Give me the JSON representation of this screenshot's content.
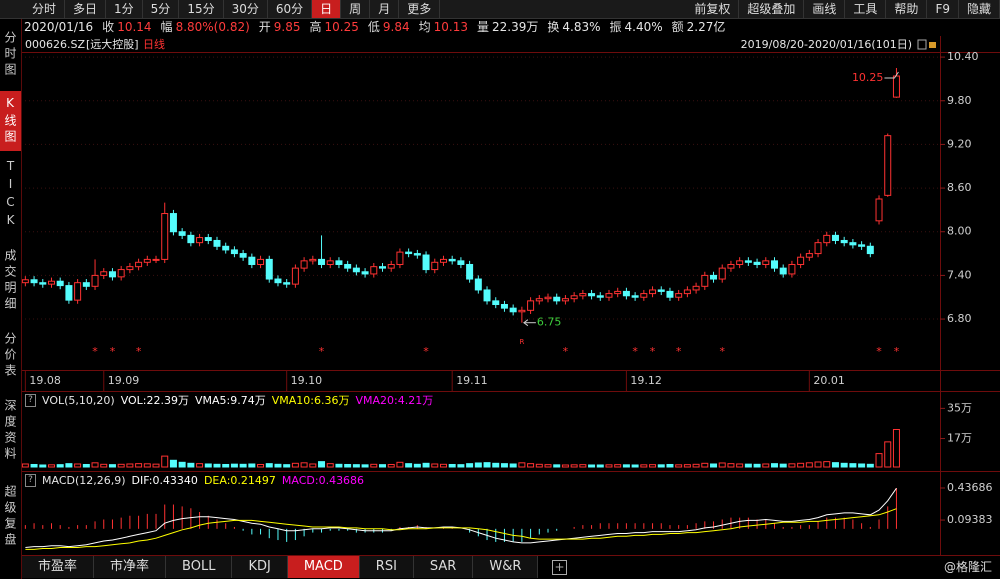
{
  "toolbar": {
    "tabs": [
      "分时",
      "多日",
      "1分",
      "5分",
      "15分",
      "30分",
      "60分",
      "日",
      "周",
      "月",
      "更多"
    ],
    "active_tab": 7,
    "buttons": [
      "前复权",
      "超级叠加",
      "画线",
      "工具",
      "帮助",
      "F9",
      "隐藏"
    ]
  },
  "quote": {
    "date": "2020/01/16",
    "items": [
      {
        "label": "收",
        "value": "10.14",
        "color": "#ff3c3c"
      },
      {
        "label": "幅",
        "value": "8.80%(0.82)",
        "color": "#ff3c3c"
      },
      {
        "label": "开",
        "value": "9.85",
        "color": "#ff3c3c"
      },
      {
        "label": "高",
        "value": "10.25",
        "color": "#ff3c3c"
      },
      {
        "label": "低",
        "value": "9.84",
        "color": "#ff3c3c"
      },
      {
        "label": "均",
        "value": "10.13",
        "color": "#ff3c3c"
      },
      {
        "label": "量",
        "value": "22.39万",
        "color": "#e6e6e6"
      },
      {
        "label": "换",
        "value": "4.83%",
        "color": "#e6e6e6"
      },
      {
        "label": "振",
        "value": "4.40%",
        "color": "#e6e6e6"
      },
      {
        "label": "额",
        "value": "2.27亿",
        "color": "#e6e6e6"
      }
    ]
  },
  "sidebar": {
    "items": [
      "分时图",
      "K线图",
      "TICK",
      "成交明细",
      "分价表",
      "深度资料",
      "超级复盘"
    ],
    "active": 1
  },
  "chart_data": [
    {
      "type": "candlestick",
      "symbol": "000626.SZ",
      "name": "[远大控股]",
      "period": "日线",
      "range": "2019/08/20-2020/01/16(101日)",
      "up_color": "#ff3232",
      "down_color": "#54fcfc",
      "open": [
        7.3,
        7.34,
        7.3,
        7.28,
        7.32,
        7.26,
        7.06,
        7.3,
        7.25,
        7.4,
        7.45,
        7.38,
        7.48,
        7.52,
        7.58,
        7.62,
        7.62,
        8.25,
        8.0,
        7.95,
        7.85,
        7.92,
        7.88,
        7.8,
        7.75,
        7.7,
        7.65,
        7.55,
        7.62,
        7.35,
        7.3,
        7.28,
        7.5,
        7.6,
        7.62,
        7.55,
        7.6,
        7.55,
        7.5,
        7.45,
        7.42,
        7.52,
        7.5,
        7.55,
        7.72,
        7.7,
        7.68,
        7.48,
        7.58,
        7.62,
        7.6,
        7.55,
        7.35,
        7.2,
        7.05,
        7.0,
        6.95,
        6.9,
        6.92,
        7.05,
        7.08,
        7.1,
        7.05,
        7.08,
        7.12,
        7.15,
        7.12,
        7.1,
        7.15,
        7.18,
        7.12,
        7.1,
        7.15,
        7.2,
        7.18,
        7.1,
        7.15,
        7.2,
        7.25,
        7.4,
        7.35,
        7.5,
        7.55,
        7.6,
        7.58,
        7.55,
        7.6,
        7.5,
        7.42,
        7.55,
        7.65,
        7.7,
        7.85,
        7.95,
        7.88,
        7.85,
        7.82,
        7.8,
        8.15,
        8.5,
        9.85
      ],
      "high": [
        7.39,
        7.39,
        7.35,
        7.37,
        7.37,
        7.31,
        7.35,
        7.35,
        7.62,
        7.5,
        7.5,
        7.53,
        7.57,
        7.63,
        7.67,
        7.67,
        8.4,
        8.3,
        8.05,
        8.0,
        7.97,
        7.97,
        7.93,
        7.85,
        7.8,
        7.75,
        7.7,
        7.67,
        7.67,
        7.4,
        7.35,
        7.55,
        7.65,
        7.67,
        7.95,
        7.65,
        7.65,
        7.6,
        7.55,
        7.5,
        7.57,
        7.57,
        7.6,
        7.77,
        7.77,
        7.75,
        7.73,
        7.63,
        7.67,
        7.67,
        7.65,
        7.6,
        7.4,
        7.25,
        7.1,
        7.05,
        7.0,
        6.97,
        7.1,
        7.13,
        7.15,
        7.15,
        7.13,
        7.17,
        7.2,
        7.2,
        7.17,
        7.2,
        7.23,
        7.23,
        7.17,
        7.2,
        7.25,
        7.25,
        7.23,
        7.2,
        7.25,
        7.3,
        7.45,
        7.45,
        7.55,
        7.6,
        7.65,
        7.65,
        7.63,
        7.65,
        7.65,
        7.55,
        7.6,
        7.7,
        7.75,
        7.9,
        8.0,
        8.0,
        7.93,
        7.9,
        7.87,
        7.85,
        8.5,
        9.35,
        10.25
      ],
      "low": [
        7.25,
        7.25,
        7.23,
        7.23,
        7.21,
        7.01,
        7.01,
        7.2,
        7.2,
        7.35,
        7.33,
        7.33,
        7.43,
        7.47,
        7.53,
        7.57,
        7.57,
        7.95,
        7.9,
        7.8,
        7.8,
        7.83,
        7.75,
        7.7,
        7.65,
        7.6,
        7.5,
        7.5,
        7.3,
        7.25,
        7.23,
        7.23,
        7.45,
        7.55,
        7.5,
        7.5,
        7.5,
        7.45,
        7.4,
        7.37,
        7.37,
        7.45,
        7.45,
        7.5,
        7.65,
        7.63,
        7.43,
        7.43,
        7.53,
        7.55,
        7.5,
        7.3,
        7.15,
        7.0,
        6.95,
        6.9,
        6.85,
        6.75,
        6.87,
        7.0,
        7.03,
        7.0,
        7.0,
        7.03,
        7.07,
        7.07,
        7.05,
        7.05,
        7.1,
        7.07,
        7.05,
        7.05,
        7.1,
        7.13,
        7.05,
        7.05,
        7.1,
        7.15,
        7.2,
        7.3,
        7.3,
        7.45,
        7.5,
        7.53,
        7.5,
        7.5,
        7.45,
        7.37,
        7.37,
        7.5,
        7.6,
        7.65,
        7.8,
        7.83,
        7.8,
        7.77,
        7.75,
        7.65,
        8.1,
        8.48,
        9.84
      ],
      "close": [
        7.34,
        7.3,
        7.28,
        7.32,
        7.26,
        7.06,
        7.3,
        7.25,
        7.4,
        7.45,
        7.38,
        7.48,
        7.52,
        7.58,
        7.62,
        7.62,
        8.25,
        8.0,
        7.95,
        7.85,
        7.92,
        7.88,
        7.8,
        7.75,
        7.7,
        7.65,
        7.55,
        7.62,
        7.35,
        7.3,
        7.28,
        7.5,
        7.6,
        7.62,
        7.55,
        7.6,
        7.55,
        7.5,
        7.45,
        7.42,
        7.52,
        7.5,
        7.55,
        7.72,
        7.7,
        7.68,
        7.48,
        7.58,
        7.62,
        7.6,
        7.55,
        7.35,
        7.2,
        7.05,
        7.0,
        6.95,
        6.9,
        6.92,
        7.05,
        7.08,
        7.1,
        7.05,
        7.08,
        7.12,
        7.15,
        7.12,
        7.1,
        7.15,
        7.18,
        7.12,
        7.1,
        7.15,
        7.2,
        7.18,
        7.1,
        7.15,
        7.2,
        7.25,
        7.4,
        7.35,
        7.5,
        7.55,
        7.6,
        7.58,
        7.55,
        7.6,
        7.5,
        7.42,
        7.55,
        7.65,
        7.7,
        7.85,
        7.95,
        7.88,
        7.85,
        7.82,
        7.8,
        7.7,
        8.45,
        9.32,
        10.14
      ],
      "xlim": [
        -0.5,
        105
      ],
      "xticks": [
        {
          "value": 0,
          "label": "19.08"
        },
        {
          "value": 9,
          "label": "19.09"
        },
        {
          "value": 30,
          "label": "19.10"
        },
        {
          "value": 49,
          "label": "19.11"
        },
        {
          "value": 69,
          "label": "19.12"
        },
        {
          "value": 90,
          "label": "20.01"
        }
      ],
      "ylim": [
        6.1,
        10.47
      ],
      "yticks": [
        {
          "value": 10.4,
          "label": "10.40"
        },
        {
          "value": 9.8,
          "label": "9.80"
        },
        {
          "value": 9.2,
          "label": "9.20"
        },
        {
          "value": 8.6,
          "label": "8.60"
        },
        {
          "value": 8.0,
          "label": "8.00"
        },
        {
          "value": 7.4,
          "label": "7.40"
        },
        {
          "value": 6.8,
          "label": "6.80"
        }
      ],
      "grid": true,
      "annotations": [
        {
          "text": "10.25",
          "index": 100,
          "color": "#ff3232"
        },
        {
          "text": "6.75",
          "index": 57,
          "color": "#3ccc3c"
        }
      ],
      "markers": {
        "label": "*",
        "indices": [
          8,
          10,
          13,
          34,
          46,
          62,
          70,
          72,
          75,
          80,
          98,
          100
        ],
        "color": "#ff3232"
      },
      "r_marker": {
        "label": "R",
        "index": 57
      }
    },
    {
      "type": "bar",
      "title": "VOL(5,10,20)",
      "legend": [
        {
          "text": "VOL:22.39万",
          "color": "#ffffff"
        },
        {
          "text": "VMA5:9.74万",
          "color": "#ffffff"
        },
        {
          "text": "VMA10:6.36万",
          "color": "#ffff00"
        },
        {
          "text": "VMA20:4.21万",
          "color": "#ff00ff"
        }
      ],
      "values": [
        1.8,
        1.5,
        1.2,
        1.3,
        1.4,
        2.0,
        1.8,
        1.5,
        2.5,
        1.6,
        1.4,
        1.6,
        1.8,
        2.0,
        1.9,
        1.7,
        6.5,
        4.0,
        2.8,
        2.2,
        2.0,
        1.8,
        1.6,
        1.5,
        1.7,
        1.6,
        1.8,
        1.5,
        2.0,
        1.6,
        1.4,
        2.2,
        2.5,
        1.8,
        3.2,
        2.0,
        1.6,
        1.5,
        1.4,
        1.3,
        1.6,
        1.4,
        1.5,
        2.8,
        2.0,
        1.6,
        2.2,
        1.8,
        1.6,
        1.5,
        1.4,
        2.0,
        2.4,
        2.6,
        2.2,
        2.0,
        1.8,
        2.5,
        2.0,
        1.6,
        1.4,
        1.3,
        1.2,
        1.3,
        1.4,
        1.2,
        1.2,
        1.3,
        1.4,
        1.3,
        1.2,
        1.3,
        1.4,
        1.3,
        1.5,
        1.3,
        1.4,
        1.6,
        2.2,
        1.8,
        2.4,
        2.0,
        1.8,
        1.7,
        1.6,
        1.8,
        2.0,
        1.7,
        1.9,
        2.2,
        2.5,
        3.0,
        3.2,
        2.6,
        2.2,
        2.0,
        1.8,
        1.6,
        8.0,
        15.0,
        22.39
      ],
      "ylim": [
        0,
        40
      ],
      "yticks": [
        {
          "value": 35,
          "label": "35万"
        },
        {
          "value": 17,
          "label": "17万"
        }
      ]
    },
    {
      "type": "macd",
      "title": "MACD(12,26,9)",
      "up_color": "#ff3232",
      "down_color": "#54fcfc",
      "series": [
        {
          "label": "DIF:0.43340",
          "color": "#ffffff",
          "values": [
            -0.2,
            -0.19,
            -0.19,
            -0.18,
            -0.18,
            -0.19,
            -0.18,
            -0.17,
            -0.15,
            -0.13,
            -0.12,
            -0.1,
            -0.08,
            -0.06,
            -0.04,
            -0.02,
            0.06,
            0.09,
            0.11,
            0.12,
            0.13,
            0.13,
            0.12,
            0.11,
            0.1,
            0.08,
            0.06,
            0.05,
            0.02,
            0.0,
            -0.02,
            -0.02,
            -0.01,
            0.0,
            0.0,
            0.01,
            0.01,
            0.0,
            -0.01,
            -0.02,
            -0.02,
            -0.02,
            -0.02,
            0.0,
            0.01,
            0.02,
            0.01,
            0.01,
            0.02,
            0.02,
            0.01,
            -0.01,
            -0.04,
            -0.07,
            -0.1,
            -0.12,
            -0.14,
            -0.15,
            -0.15,
            -0.14,
            -0.13,
            -0.12,
            -0.11,
            -0.1,
            -0.09,
            -0.08,
            -0.07,
            -0.06,
            -0.05,
            -0.05,
            -0.04,
            -0.04,
            -0.03,
            -0.03,
            -0.03,
            -0.03,
            -0.02,
            -0.01,
            0.01,
            0.02,
            0.04,
            0.06,
            0.08,
            0.09,
            0.09,
            0.1,
            0.09,
            0.08,
            0.08,
            0.09,
            0.1,
            0.12,
            0.15,
            0.16,
            0.17,
            0.17,
            0.16,
            0.15,
            0.2,
            0.3,
            0.4334
          ]
        },
        {
          "label": "DEA:0.21497",
          "color": "#ffff00",
          "values": [
            -0.22,
            -0.22,
            -0.21,
            -0.21,
            -0.2,
            -0.2,
            -0.2,
            -0.19,
            -0.19,
            -0.18,
            -0.17,
            -0.16,
            -0.15,
            -0.13,
            -0.12,
            -0.1,
            -0.07,
            -0.04,
            -0.01,
            0.01,
            0.04,
            0.06,
            0.07,
            0.08,
            0.09,
            0.09,
            0.09,
            0.08,
            0.07,
            0.06,
            0.05,
            0.04,
            0.03,
            0.02,
            0.02,
            0.02,
            0.02,
            0.01,
            0.01,
            0.0,
            0.0,
            0.0,
            -0.01,
            -0.01,
            0.0,
            0.0,
            0.0,
            0.01,
            0.01,
            0.01,
            0.01,
            0.01,
            0.0,
            -0.01,
            -0.03,
            -0.05,
            -0.07,
            -0.08,
            -0.1,
            -0.11,
            -0.11,
            -0.11,
            -0.11,
            -0.11,
            -0.11,
            -0.1,
            -0.1,
            -0.09,
            -0.08,
            -0.08,
            -0.07,
            -0.07,
            -0.06,
            -0.06,
            -0.05,
            -0.05,
            -0.04,
            -0.04,
            -0.03,
            -0.02,
            -0.01,
            0.0,
            0.02,
            0.03,
            0.04,
            0.05,
            0.06,
            0.07,
            0.07,
            0.07,
            0.08,
            0.08,
            0.09,
            0.1,
            0.11,
            0.12,
            0.13,
            0.14,
            0.15,
            0.18,
            0.21497
          ]
        },
        {
          "label": "MACD:0.43686",
          "color": "#ff00ff",
          "values": [
            0.04,
            0.06,
            0.04,
            0.06,
            0.04,
            0.02,
            0.04,
            0.04,
            0.08,
            0.1,
            0.1,
            0.12,
            0.14,
            0.14,
            0.16,
            0.16,
            0.26,
            0.26,
            0.24,
            0.22,
            0.18,
            0.14,
            0.1,
            0.06,
            0.02,
            -0.02,
            -0.06,
            -0.06,
            -0.1,
            -0.12,
            -0.14,
            -0.12,
            -0.08,
            -0.04,
            -0.04,
            -0.02,
            -0.02,
            -0.02,
            -0.04,
            -0.04,
            -0.04,
            -0.04,
            -0.02,
            0.02,
            0.02,
            0.04,
            0.02,
            0.0,
            0.02,
            0.02,
            0.0,
            -0.04,
            -0.08,
            -0.12,
            -0.14,
            -0.14,
            -0.14,
            -0.14,
            -0.1,
            -0.06,
            -0.04,
            -0.02,
            0.0,
            0.02,
            0.04,
            0.04,
            0.06,
            0.06,
            0.06,
            0.06,
            0.06,
            0.06,
            0.06,
            0.06,
            0.04,
            0.04,
            0.04,
            0.06,
            0.08,
            0.08,
            0.1,
            0.12,
            0.12,
            0.12,
            0.1,
            0.1,
            0.06,
            0.02,
            0.02,
            0.04,
            0.04,
            0.08,
            0.12,
            0.12,
            0.12,
            0.1,
            0.06,
            0.02,
            0.1,
            0.24,
            0.43686
          ]
        }
      ],
      "ylim": [
        -0.28,
        0.56
      ],
      "yticks": [
        0.43686,
        0.09383
      ]
    }
  ],
  "indicator_tabs": {
    "items": [
      "市盈率",
      "市净率",
      "BOLL",
      "KDJ",
      "MACD",
      "RSI",
      "SAR",
      "W&R"
    ],
    "active": 4
  },
  "watermark": "@格隆汇"
}
